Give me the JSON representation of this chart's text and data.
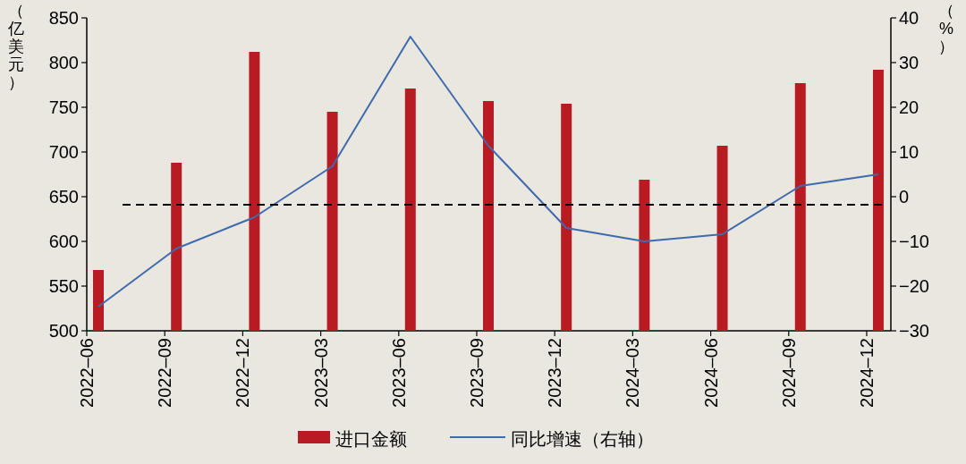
{
  "chart_data": {
    "type": "bar",
    "categories": [
      "2022–06",
      "2022–09",
      "2022–12",
      "2023–03",
      "2023–06",
      "2023–09",
      "2023–12",
      "2024–03",
      "2024–06",
      "2024–09",
      "2024–12"
    ],
    "series": [
      {
        "name": "进口金额",
        "color": "#b81c22",
        "values": [
          568,
          688,
          812,
          745,
          771,
          757,
          754,
          669,
          707,
          777,
          792
        ]
      },
      {
        "name": "同比增速（右轴）",
        "type": "line",
        "axis": "y2",
        "color": "#3f6aad",
        "values": [
          -24.6,
          -11.6,
          -4.6,
          6.8,
          35.8,
          11.4,
          -7,
          -10,
          -8.4,
          2.4,
          5
        ]
      }
    ],
    "ylabel": "（亿美元）",
    "y2label": "（%）",
    "ylim": [
      500,
      850
    ],
    "yticks": [
      500,
      550,
      600,
      650,
      700,
      750,
      800,
      850
    ],
    "y2lim": [
      -30,
      40
    ],
    "y2ticks": [
      {
        "value": -30,
        "label": "−30"
      },
      {
        "value": -20,
        "label": "−20"
      },
      {
        "value": -10,
        "label": "−10"
      },
      0,
      10,
      20,
      30,
      40
    ],
    "ref_lines": [
      {
        "axis": "y",
        "value": 641,
        "color": "#000000",
        "line_style": "dashed"
      }
    ],
    "legend": "bottom"
  }
}
